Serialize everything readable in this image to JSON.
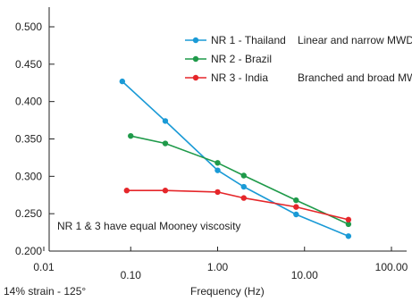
{
  "chart_data": {
    "type": "line",
    "x_scale": "log",
    "xlim": [
      0.01,
      100.0
    ],
    "ylim": [
      0.2,
      0.5
    ],
    "grid": false,
    "legend_placement": "top-right",
    "x_tick_labels": [
      "0.01",
      "0.10",
      "1.00",
      "10.00",
      "100.00"
    ],
    "y_tick_labels": [
      "0.200",
      "0.250",
      "0.300",
      "0.350",
      "0.400",
      "0.450",
      "0.500"
    ],
    "xlabel": "Frequency (Hz)",
    "strain_label": "14% strain - 125°",
    "annotation": "NR 1 & 3 have equal Mooney viscosity",
    "series": [
      {
        "name": "NR 1 - Thailand",
        "description": "Linear and narrow MWD",
        "color": "#1a9ad6",
        "x": [
          0.08,
          0.25,
          1.0,
          2.0,
          8.0,
          32.0
        ],
        "y": [
          0.427,
          0.374,
          0.308,
          0.286,
          0.249,
          0.22
        ]
      },
      {
        "name": "NR 2 - Brazil",
        "description": "",
        "color": "#1f9a4a",
        "x": [
          0.1,
          0.25,
          1.0,
          2.0,
          8.0,
          32.0
        ],
        "y": [
          0.354,
          0.344,
          0.318,
          0.301,
          0.268,
          0.236
        ]
      },
      {
        "name": "NR 3 - India",
        "description": "Branched and broad MWD",
        "color": "#e5262a",
        "x": [
          0.09,
          0.25,
          1.0,
          2.0,
          8.0,
          32.0
        ],
        "y": [
          0.281,
          0.281,
          0.279,
          0.271,
          0.259,
          0.242
        ]
      }
    ]
  }
}
